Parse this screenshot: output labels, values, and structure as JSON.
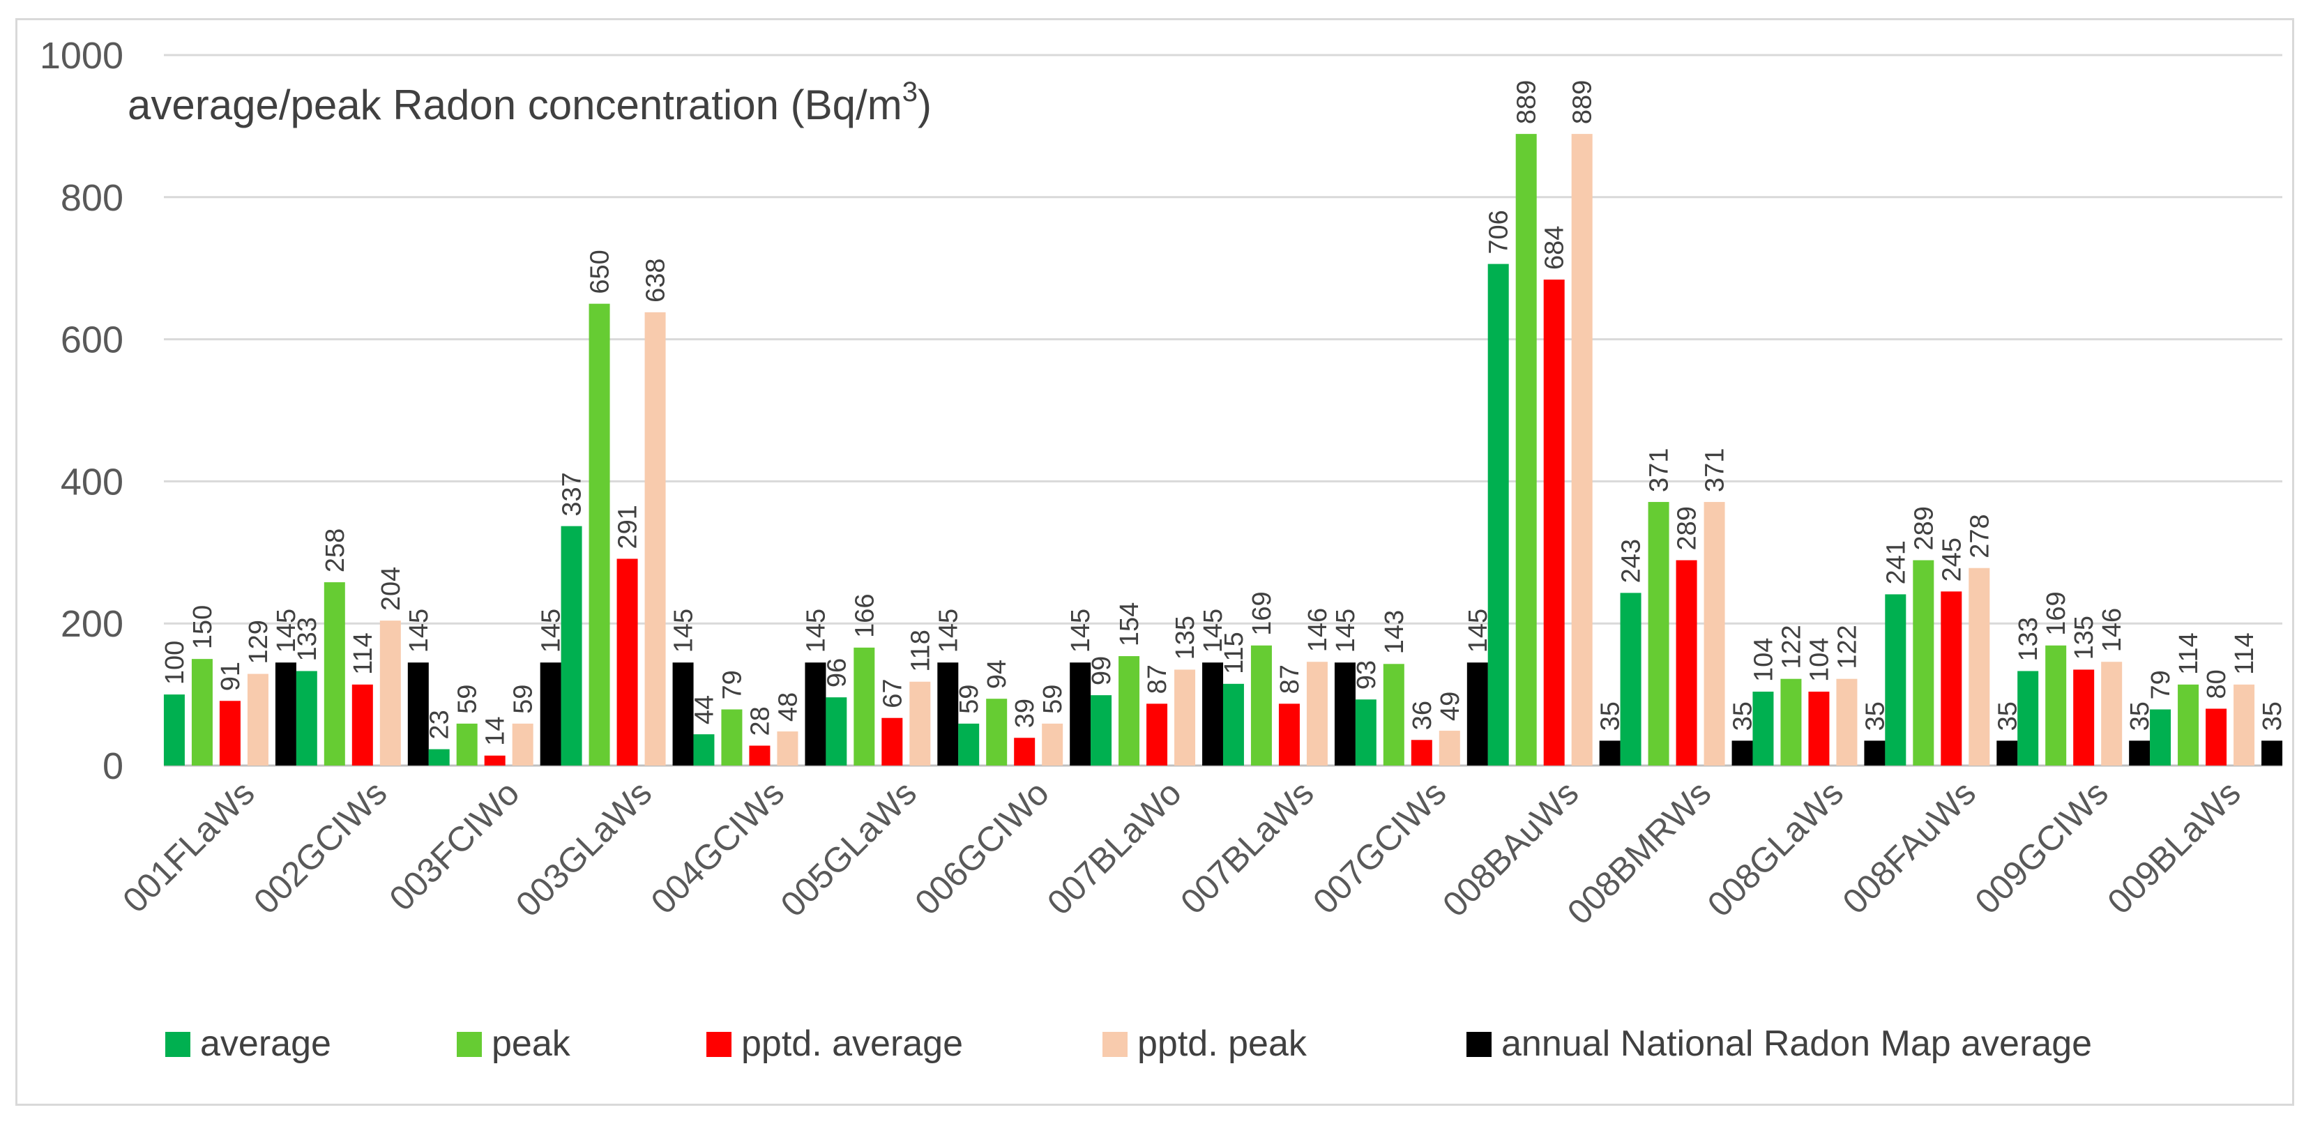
{
  "chart_data": {
    "type": "bar",
    "title_main": "average/peak Radon concentration (Bq/m",
    "title_sup": "3",
    "title_end": ")",
    "ylim": [
      0,
      1000
    ],
    "yticks": [
      0,
      200,
      400,
      600,
      800,
      1000
    ],
    "grid": true,
    "legend_position": "bottom",
    "categories": [
      "001FLaWs",
      "002GCIWs",
      "003FCIWo",
      "003GLaWs",
      "004GCIWs",
      "005GLaWs",
      "006GCIWo",
      "007BLaWo",
      "007BLaWs",
      "007GCIWs",
      "008BAuWs",
      "008BMRWs",
      "008GLaWs",
      "008FAuWs",
      "009GCIWs",
      "009BLaWs"
    ],
    "series": [
      {
        "name": "average",
        "color": "#00b050",
        "values": [
          100,
          133,
          23,
          337,
          44,
          96,
          59,
          99,
          115,
          93,
          706,
          243,
          104,
          241,
          133,
          79
        ]
      },
      {
        "name": "peak",
        "color": "#66cc33",
        "values": [
          150,
          258,
          59,
          650,
          79,
          166,
          94,
          154,
          169,
          143,
          889,
          371,
          122,
          289,
          169,
          114
        ]
      },
      {
        "name": "pptd. average",
        "color": "#ff0000",
        "values": [
          91,
          114,
          14,
          291,
          28,
          67,
          39,
          87,
          87,
          36,
          684,
          289,
          104,
          245,
          135,
          80
        ]
      },
      {
        "name": "pptd. peak",
        "color": "#f8cbad",
        "values": [
          129,
          204,
          59,
          638,
          48,
          118,
          59,
          135,
          146,
          49,
          889,
          371,
          122,
          278,
          146,
          114
        ]
      },
      {
        "name": "annual National Radon Map average",
        "color": "#000000",
        "values": [
          145,
          145,
          145,
          145,
          145,
          145,
          145,
          145,
          145,
          145,
          35,
          35,
          35,
          35,
          35,
          35
        ]
      }
    ]
  }
}
